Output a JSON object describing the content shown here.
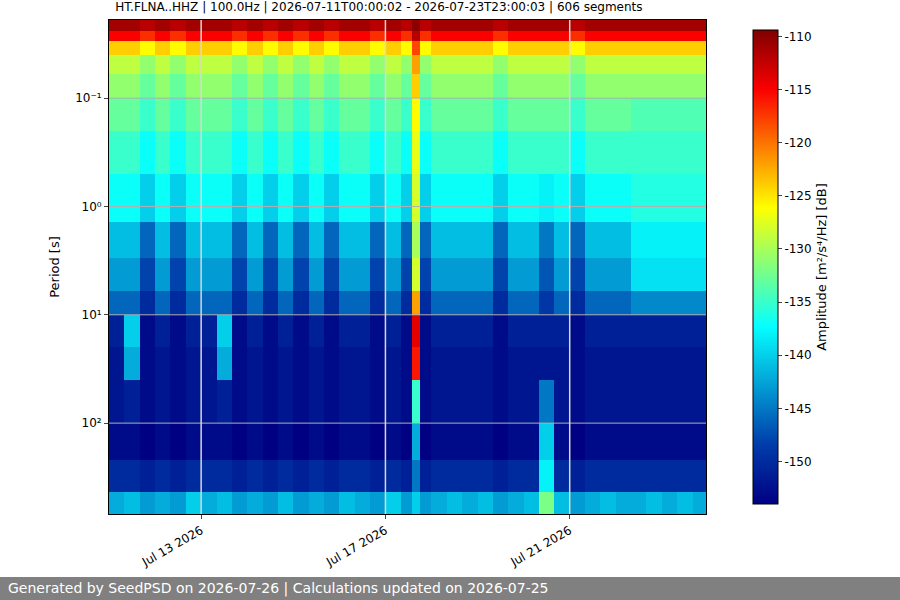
{
  "chart_data": {
    "type": "heatmap",
    "title": "HT.FLNA..HHZ | 100.0Hz | 2026-07-11T00:00:02 - 2026-07-23T23:00:03 | 606 segments",
    "y_label": "Period [s]",
    "colorbar_title": "Amplitude [m²/s⁴/Hz] [dB]",
    "annotations": [
      "Generated by SeedPSD on 2026-07-26 | Calculations updated on 2026-07-25"
    ],
    "color": "Jet",
    "log": "y",
    "grid": true,
    "xlim": [
      "2026-07-11T00:00:02",
      "2026-07-23T23:00:03"
    ],
    "xticks": [
      {
        "value": "2026-07-13",
        "label": "Jul 13 2026"
      },
      {
        "value": "2026-07-17",
        "label": "Jul 17 2026"
      },
      {
        "value": "2026-07-21",
        "label": "Jul 21 2026"
      }
    ],
    "ylim": [
      0.019,
      690
    ],
    "yticks": [
      {
        "value": 0.1,
        "label": "10⁻¹"
      },
      {
        "value": 1,
        "label": "10⁰"
      },
      {
        "value": 10,
        "label": "10¹"
      },
      {
        "value": 100,
        "label": "10²"
      }
    ],
    "zlim": [
      -154,
      -109.4
    ],
    "zticks": [
      -150,
      -145,
      -140,
      -135,
      -130,
      -125,
      -120,
      -115,
      -110
    ],
    "x_edges": [
      "2026-07-11T00:00:02",
      "2026-07-11T08:00:00",
      "2026-07-11T16:00:00",
      "2026-07-12T00:00:00",
      "2026-07-12T08:00:00",
      "2026-07-12T16:00:00",
      "2026-07-13T00:00:00",
      "2026-07-13T08:00:00",
      "2026-07-13T16:00:00",
      "2026-07-14T00:00:00",
      "2026-07-14T08:00:00",
      "2026-07-14T16:00:00",
      "2026-07-15T00:00:00",
      "2026-07-15T08:00:00",
      "2026-07-15T16:00:00",
      "2026-07-16T00:00:00",
      "2026-07-16T08:00:00",
      "2026-07-16T16:00:00",
      "2026-07-17T00:00:00",
      "2026-07-17T08:00:00",
      "2026-07-17T14:00:00",
      "2026-07-17T18:00:00",
      "2026-07-18T00:00:00",
      "2026-07-18T08:00:00",
      "2026-07-18T16:00:00",
      "2026-07-19T00:00:00",
      "2026-07-19T08:00:00",
      "2026-07-19T16:00:00",
      "2026-07-20T00:00:00",
      "2026-07-20T08:00:00",
      "2026-07-20T16:00:00",
      "2026-07-21T00:00:00",
      "2026-07-21T08:00:00",
      "2026-07-21T16:00:00",
      "2026-07-22T00:00:00",
      "2026-07-22T08:00:00",
      "2026-07-22T16:00:00",
      "2026-07-23T00:00:00",
      "2026-07-23T08:00:00",
      "2026-07-23T16:00:00",
      "2026-07-23T23:00:03"
    ],
    "y_edges": [
      0.019,
      0.024,
      0.03,
      0.04,
      0.06,
      0.1,
      0.2,
      0.5,
      1.4,
      3,
      6,
      10,
      20,
      40,
      100,
      220,
      435,
      690
    ],
    "cells": [
      [
        -111,
        -111,
        -112,
        -111,
        -112,
        -111,
        -111,
        -111,
        -112,
        -111,
        -112,
        -111,
        -112,
        -111,
        -112,
        -111,
        -111,
        -112,
        -111,
        -112,
        -110,
        -112,
        -111,
        -111,
        -111,
        -111,
        -112,
        -111,
        -111,
        -111,
        -111,
        -112,
        -111,
        -111,
        -111,
        -111,
        -111,
        -111,
        -111,
        -111
      ],
      [
        -115,
        -115,
        -117,
        -115,
        -117,
        -115,
        -115,
        -115,
        -117,
        -115,
        -117,
        -115,
        -117,
        -115,
        -117,
        -115,
        -115,
        -117,
        -115,
        -117,
        -112,
        -117,
        -115,
        -115,
        -115,
        -115,
        -117,
        -115,
        -115,
        -115,
        -115,
        -117,
        -115,
        -115,
        -115,
        -115,
        -115,
        -115,
        -115,
        -115
      ],
      [
        -124,
        -124,
        -126,
        -124,
        -126,
        -124,
        -124,
        -124,
        -126,
        -124,
        -126,
        -124,
        -126,
        -124,
        -126,
        -124,
        -124,
        -126,
        -124,
        -126,
        -118,
        -126,
        -124,
        -124,
        -124,
        -124,
        -126,
        -124,
        -124,
        -124,
        -124,
        -126,
        -124,
        -124,
        -124,
        -124,
        -124,
        -124,
        -124,
        -124
      ],
      [
        -129,
        -129,
        -131,
        -129,
        -131,
        -129,
        -129,
        -129,
        -131,
        -129,
        -131,
        -129,
        -131,
        -129,
        -131,
        -129,
        -129,
        -131,
        -129,
        -131,
        -122,
        -131,
        -129,
        -129,
        -129,
        -129,
        -131,
        -129,
        -129,
        -129,
        -129,
        -131,
        -129,
        -129,
        -129,
        -129,
        -129,
        -129,
        -129,
        -129
      ],
      [
        -131,
        -131,
        -133,
        -131,
        -133,
        -131,
        -131,
        -131,
        -133,
        -131,
        -133,
        -131,
        -133,
        -131,
        -133,
        -131,
        -131,
        -133,
        -131,
        -133,
        -124,
        -133,
        -131,
        -131,
        -131,
        -131,
        -133,
        -131,
        -131,
        -131,
        -131,
        -133,
        -131,
        -131,
        -131,
        -131,
        -131,
        -131,
        -131,
        -131
      ],
      [
        -133,
        -133,
        -135,
        -133,
        -135,
        -133,
        -133,
        -133,
        -135,
        -133,
        -135,
        -133,
        -135,
        -133,
        -135,
        -133,
        -133,
        -135,
        -133,
        -135,
        -126,
        -135,
        -133,
        -133,
        -133,
        -133,
        -135,
        -133,
        -133,
        -133,
        -133,
        -135,
        -133,
        -133,
        -133,
        -134,
        -134,
        -134,
        -134,
        -134
      ],
      [
        -135,
        -135,
        -137,
        -135,
        -137,
        -135,
        -135,
        -135,
        -137,
        -135,
        -137,
        -135,
        -137,
        -135,
        -137,
        -135,
        -135,
        -137,
        -135,
        -137,
        -127,
        -137,
        -135,
        -135,
        -135,
        -135,
        -137,
        -135,
        -135,
        -135,
        -135,
        -137,
        -135,
        -135,
        -135,
        -135,
        -135,
        -135,
        -135,
        -135
      ],
      [
        -137,
        -137,
        -140,
        -137,
        -140,
        -137,
        -137,
        -137,
        -140,
        -137,
        -140,
        -137,
        -140,
        -137,
        -140,
        -137,
        -137,
        -140,
        -137,
        -140,
        -128,
        -140,
        -137,
        -137,
        -137,
        -137,
        -140,
        -137,
        -137,
        -138,
        -137,
        -140,
        -137,
        -137,
        -137,
        -136,
        -136,
        -136,
        -136,
        -136
      ],
      [
        -141,
        -141,
        -146,
        -141,
        -146,
        -141,
        -141,
        -141,
        -146,
        -141,
        -146,
        -141,
        -146,
        -141,
        -146,
        -141,
        -141,
        -146,
        -141,
        -146,
        -130,
        -146,
        -141,
        -141,
        -141,
        -141,
        -146,
        -141,
        -141,
        -145,
        -141,
        -146,
        -141,
        -141,
        -141,
        -138,
        -138,
        -138,
        -138,
        -138
      ],
      [
        -143,
        -143,
        -148,
        -143,
        -148,
        -143,
        -143,
        -143,
        -148,
        -143,
        -148,
        -143,
        -148,
        -143,
        -148,
        -143,
        -143,
        -148,
        -143,
        -148,
        -128,
        -148,
        -143,
        -143,
        -143,
        -143,
        -148,
        -143,
        -143,
        -147,
        -143,
        -148,
        -143,
        -143,
        -143,
        -139,
        -139,
        -139,
        -139,
        -139
      ],
      [
        -146,
        -146,
        -150,
        -146,
        -150,
        -146,
        -146,
        -146,
        -150,
        -146,
        -150,
        -146,
        -150,
        -146,
        -150,
        -146,
        -146,
        -150,
        -146,
        -150,
        -122,
        -150,
        -146,
        -146,
        -146,
        -146,
        -150,
        -146,
        -146,
        -149,
        -146,
        -150,
        -146,
        -146,
        -146,
        -144,
        -144,
        -144,
        -144,
        -144
      ],
      [
        -151,
        -140,
        -153,
        -151,
        -153,
        -151,
        -151,
        -140,
        -153,
        -151,
        -153,
        -151,
        -153,
        -151,
        -153,
        -151,
        -151,
        -153,
        -151,
        -153,
        -114,
        -153,
        -151,
        -151,
        -151,
        -151,
        -153,
        -151,
        -151,
        -151,
        -151,
        -153,
        -151,
        -151,
        -151,
        -151,
        -151,
        -151,
        -151,
        -151
      ],
      [
        -152,
        -142,
        -153,
        -152,
        -153,
        -152,
        -152,
        -142,
        -153,
        -152,
        -153,
        -152,
        -153,
        -152,
        -153,
        -152,
        -152,
        -153,
        -152,
        -153,
        -116,
        -153,
        -152,
        -152,
        -152,
        -152,
        -153,
        -152,
        -152,
        -152,
        -152,
        -153,
        -152,
        -152,
        -152,
        -152,
        -152,
        -152,
        -152,
        -152
      ],
      [
        -152,
        -151,
        -153,
        -152,
        -153,
        -152,
        -152,
        -151,
        -153,
        -152,
        -153,
        -152,
        -153,
        -152,
        -153,
        -152,
        -152,
        -153,
        -152,
        -153,
        -135,
        -153,
        -152,
        -152,
        -152,
        -152,
        -153,
        -152,
        -152,
        -145,
        -152,
        -153,
        -152,
        -152,
        -152,
        -152,
        -152,
        -152,
        -152,
        -152
      ],
      [
        -153,
        -153,
        -154,
        -153,
        -154,
        -153,
        -153,
        -153,
        -154,
        -153,
        -154,
        -153,
        -154,
        -153,
        -154,
        -153,
        -153,
        -154,
        -153,
        -154,
        -142,
        -154,
        -153,
        -153,
        -153,
        -153,
        -154,
        -153,
        -153,
        -140,
        -153,
        -154,
        -153,
        -153,
        -153,
        -153,
        -153,
        -153,
        -153,
        -153
      ],
      [
        -150,
        -150,
        -151,
        -150,
        -151,
        -150,
        -150,
        -150,
        -151,
        -150,
        -151,
        -150,
        -151,
        -150,
        -151,
        -150,
        -150,
        -151,
        -150,
        -151,
        -145,
        -151,
        -150,
        -150,
        -150,
        -150,
        -151,
        -150,
        -150,
        -138,
        -150,
        -151,
        -150,
        -150,
        -150,
        -150,
        -150,
        -150,
        -150,
        -150
      ],
      [
        -142,
        -141,
        -143,
        -142,
        -143,
        -140,
        -142,
        -141,
        -143,
        -142,
        -143,
        -141,
        -143,
        -142,
        -143,
        -141,
        -142,
        -143,
        -140,
        -143,
        -140,
        -143,
        -142,
        -141,
        -142,
        -141,
        -143,
        -142,
        -141,
        -132,
        -141,
        -143,
        -142,
        -141,
        -142,
        -142,
        -141,
        -142,
        -141,
        -142
      ]
    ]
  }
}
